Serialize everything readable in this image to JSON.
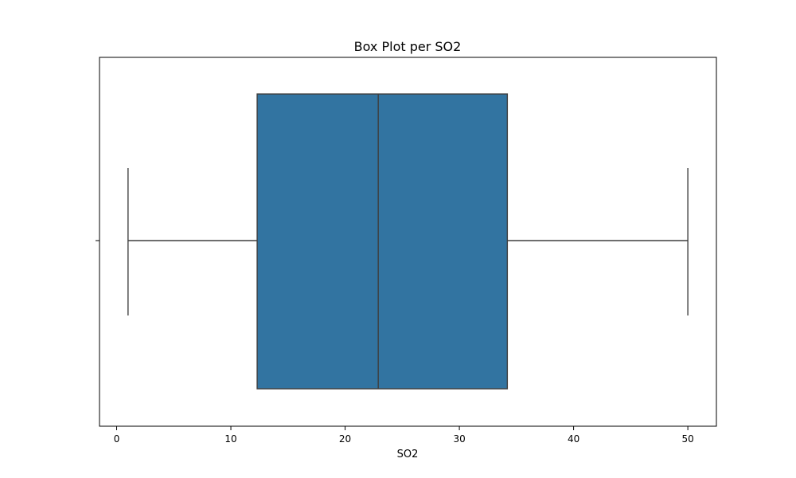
{
  "chart_data": {
    "type": "box",
    "title": "Box Plot per SO2",
    "xlabel": "SO2",
    "ylabel": "",
    "xlim": [
      -1.5,
      52.5
    ],
    "xticks": [
      0,
      10,
      20,
      30,
      40,
      50
    ],
    "xtick_labels": [
      "0",
      "10",
      "20",
      "30",
      "40",
      "50"
    ],
    "orientation": "horizontal",
    "grid": false,
    "box": {
      "min": 1.0,
      "q1": 12.3,
      "median": 22.9,
      "q3": 34.2,
      "max": 50.0
    },
    "colors": {
      "box_fill": "#3274a1",
      "line": "#3f3f3f"
    }
  }
}
